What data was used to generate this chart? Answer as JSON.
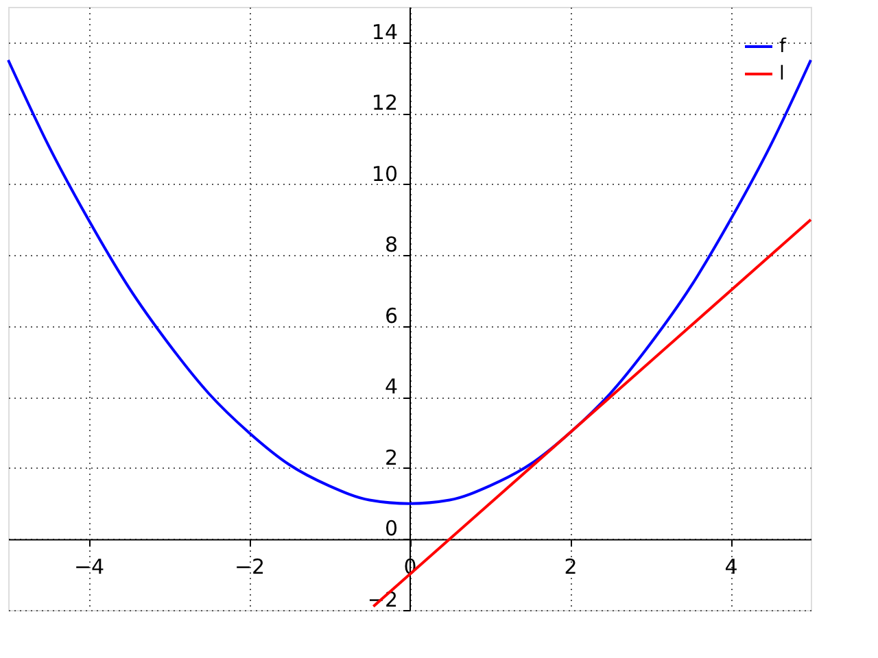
{
  "chart_data": {
    "type": "line",
    "x": [
      -5,
      -4.5,
      -4,
      -3.5,
      -3,
      -2.5,
      -2,
      -1.5,
      -1,
      -0.5,
      0,
      0.5,
      1,
      1.5,
      2,
      2.5,
      3,
      3.5,
      4,
      4.5,
      5
    ],
    "series": [
      {
        "name": "f",
        "color": "#0000ff",
        "values": [
          13.5,
          11.1,
          9,
          7.1,
          5.5,
          4.1,
          3,
          2.1,
          1.5,
          1.1,
          1,
          1.1,
          1.5,
          2.1,
          3,
          4.1,
          5.5,
          7.1,
          9,
          11.1,
          13.5
        ]
      },
      {
        "name": "l",
        "color": "#ff0000",
        "x": [
          -0.45,
          5
        ],
        "values": [
          -1.9,
          9
        ]
      }
    ],
    "xlim": [
      -5,
      5
    ],
    "xticks": [
      -4,
      -2,
      0,
      2,
      4
    ],
    "ylim": [
      -2,
      15
    ],
    "yticks": [
      -2,
      0,
      2,
      4,
      6,
      8,
      10,
      12,
      14
    ],
    "grid": true,
    "legend": "top right",
    "line_style": "solid",
    "marker": "none"
  }
}
